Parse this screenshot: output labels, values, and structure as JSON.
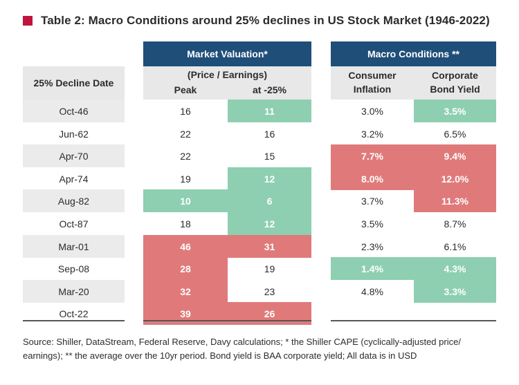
{
  "title": "Table 2: Macro Conditions around 25% declines in US Stock Market (1946-2022)",
  "colors": {
    "navy": "#1f4e79",
    "green": "#8ecfb1",
    "red": "#e07a7a",
    "accent": "#c0143c"
  },
  "headers": {
    "date": "25% Decline Date",
    "valuation_group": "Market Valuation*",
    "valuation_sub": "(Price / Earnings)",
    "peak": "Peak",
    "at25": "at -25%",
    "macro_group": "Macro Conditions **",
    "inflation_1": "Consumer",
    "inflation_2": "Inflation",
    "bond_1": "Corporate",
    "bond_2": "Bond Yield"
  },
  "chart_data": {
    "type": "table",
    "title": "Table 2: Macro Conditions around 25% declines in US Stock Market (1946-2022)",
    "columns": [
      "25% Decline Date",
      "Peak",
      "at -25%",
      "Consumer Inflation",
      "Corporate Bond Yield"
    ],
    "rows": [
      {
        "date": "Oct-46",
        "peak": "16",
        "at25": "11",
        "inflation": "3.0%",
        "bond": "3.5%",
        "peak_c": "",
        "at25_c": "green",
        "inflation_c": "",
        "bond_c": "green"
      },
      {
        "date": "Jun-62",
        "peak": "22",
        "at25": "16",
        "inflation": "3.2%",
        "bond": "6.5%",
        "peak_c": "",
        "at25_c": "",
        "inflation_c": "",
        "bond_c": ""
      },
      {
        "date": "Apr-70",
        "peak": "22",
        "at25": "15",
        "inflation": "7.7%",
        "bond": "9.4%",
        "peak_c": "",
        "at25_c": "",
        "inflation_c": "red",
        "bond_c": "red"
      },
      {
        "date": "Apr-74",
        "peak": "19",
        "at25": "12",
        "inflation": "8.0%",
        "bond": "12.0%",
        "peak_c": "",
        "at25_c": "green",
        "inflation_c": "red",
        "bond_c": "red"
      },
      {
        "date": "Aug-82",
        "peak": "10",
        "at25": "6",
        "inflation": "3.7%",
        "bond": "11.3%",
        "peak_c": "green",
        "at25_c": "green",
        "inflation_c": "",
        "bond_c": "red"
      },
      {
        "date": "Oct-87",
        "peak": "18",
        "at25": "12",
        "inflation": "3.5%",
        "bond": "8.7%",
        "peak_c": "",
        "at25_c": "green",
        "inflation_c": "",
        "bond_c": ""
      },
      {
        "date": "Mar-01",
        "peak": "46",
        "at25": "31",
        "inflation": "2.3%",
        "bond": "6.1%",
        "peak_c": "red",
        "at25_c": "red",
        "inflation_c": "",
        "bond_c": ""
      },
      {
        "date": "Sep-08",
        "peak": "28",
        "at25": "19",
        "inflation": "1.4%",
        "bond": "4.3%",
        "peak_c": "red",
        "at25_c": "",
        "inflation_c": "green",
        "bond_c": "green"
      },
      {
        "date": "Mar-20",
        "peak": "32",
        "at25": "23",
        "inflation": "4.8%",
        "bond": "3.3%",
        "peak_c": "red",
        "at25_c": "",
        "inflation_c": "",
        "bond_c": "green"
      },
      {
        "date": "Oct-22",
        "peak": "39",
        "at25": "26",
        "inflation": "",
        "bond": "",
        "peak_c": "red",
        "at25_c": "red",
        "inflation_c": "",
        "bond_c": ""
      }
    ]
  },
  "source": "Source: Shiller, DataStream, Federal Reserve, Davy calculations; * the Shiller CAPE (cyclically-adjusted price/ earnings); ** the average over the 10yr period. Bond yield is BAA corporate yield; All data is in USD"
}
